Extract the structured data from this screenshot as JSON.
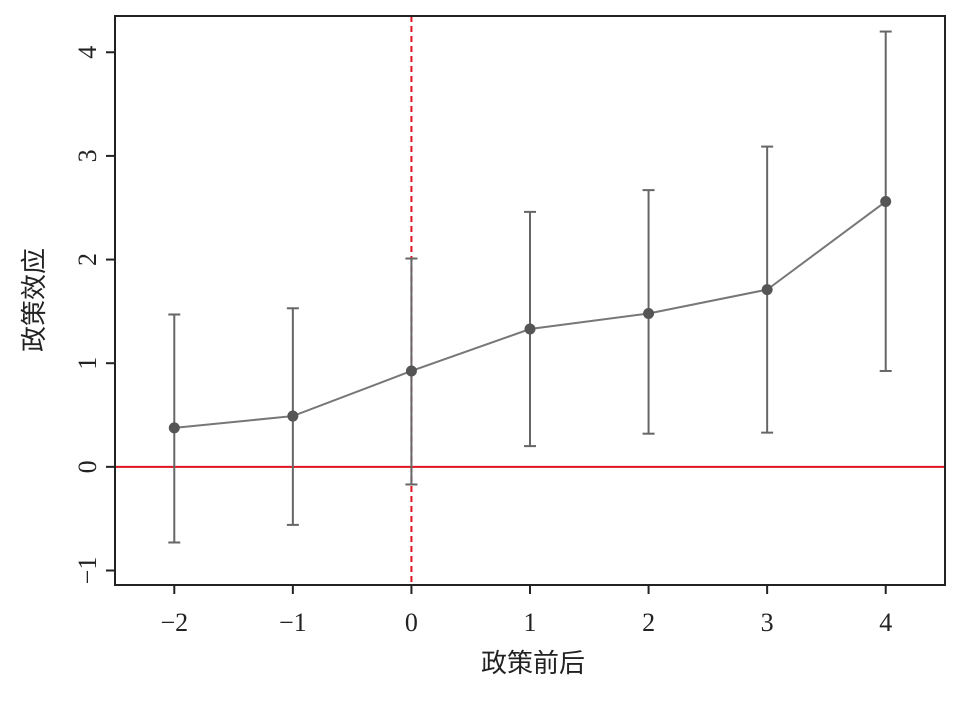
{
  "chart_data": {
    "type": "errorbar-line",
    "x_label": "政策前后",
    "y_label": "政策效应",
    "x": [
      -2,
      -1,
      0,
      1,
      2,
      3,
      4
    ],
    "values": [
      0.376,
      0.49,
      0.925,
      1.33,
      1.48,
      1.71,
      2.56
    ],
    "lower": [
      -0.73,
      -0.56,
      -0.17,
      0.2,
      0.32,
      0.33,
      0.925
    ],
    "upper": [
      1.47,
      1.53,
      2.01,
      2.46,
      2.67,
      3.09,
      4.2
    ],
    "color": "#777777",
    "point_color": "#555555",
    "xlim": [
      -2.5,
      4.5
    ],
    "ylim": [
      -1.14,
      4.35
    ],
    "xticks": [
      {
        "value": -2,
        "label": "−2"
      },
      {
        "value": -1,
        "label": "−1"
      },
      0,
      1,
      2,
      3,
      4
    ],
    "yticks": [
      {
        "value": -1,
        "label": "−1"
      },
      0,
      1,
      2,
      3,
      4
    ],
    "hline": 0,
    "vline": 0,
    "ref_color": "#e0141e"
  }
}
